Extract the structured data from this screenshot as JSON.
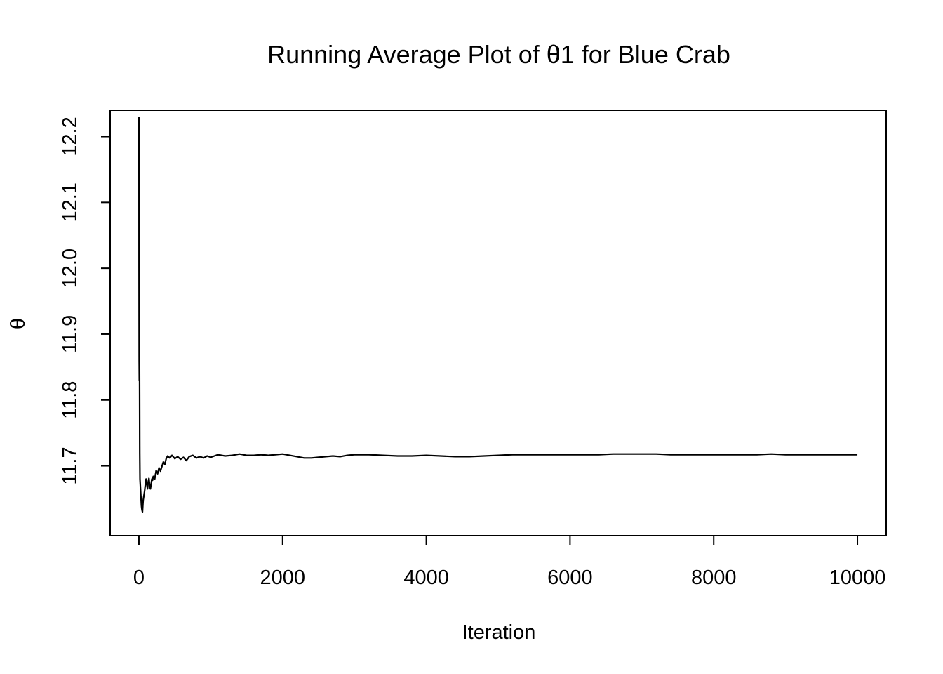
{
  "chart_data": {
    "type": "line",
    "title": "Running Average Plot of θ1 for Blue Crab",
    "xlabel": "Iteration",
    "ylabel": "θ",
    "xlim": [
      -400,
      10400
    ],
    "ylim": [
      11.594,
      12.24
    ],
    "x_ticks": [
      0,
      2000,
      4000,
      6000,
      8000,
      10000
    ],
    "x_tick_labels": [
      "0",
      "2000",
      "4000",
      "6000",
      "8000",
      "10000"
    ],
    "y_ticks": [
      11.7,
      11.8,
      11.9,
      12.0,
      12.1,
      12.2
    ],
    "y_tick_labels": [
      "11.7",
      "11.8",
      "11.9",
      "12.0",
      "12.1",
      "12.2"
    ],
    "grid": false,
    "legend": "none",
    "line_color": "#000000",
    "series": [
      {
        "x": [
          1,
          2,
          3,
          4,
          6,
          8,
          10,
          12,
          15,
          20,
          25,
          30,
          35,
          40,
          45,
          50,
          55,
          60,
          70,
          80,
          90,
          100,
          110,
          120,
          130,
          140,
          150,
          160,
          170,
          180,
          190,
          200,
          220,
          240,
          260,
          280,
          300,
          320,
          340,
          360,
          380,
          400,
          430,
          460,
          500,
          540,
          580,
          620,
          660,
          700,
          750,
          800,
          850,
          900,
          950,
          1000,
          1050,
          1100,
          1150,
          1200,
          1300,
          1400,
          1500,
          1600,
          1700,
          1800,
          1900,
          2000,
          2100,
          2200,
          2300,
          2400,
          2500,
          2600,
          2700,
          2800,
          2900,
          3000,
          3200,
          3400,
          3600,
          3800,
          4000,
          4200,
          4400,
          4600,
          4800,
          5000,
          5200,
          5400,
          5600,
          5800,
          6000,
          6200,
          6400,
          6600,
          6800,
          7000,
          7200,
          7400,
          7600,
          7800,
          8000,
          8200,
          8400,
          8600,
          8800,
          9000,
          9200,
          9400,
          9600,
          9800,
          10000
        ],
        "y": [
          12.23,
          12.0,
          11.92,
          11.86,
          11.83,
          11.9,
          11.81,
          11.72,
          11.68,
          11.67,
          11.66,
          11.65,
          11.64,
          11.635,
          11.632,
          11.63,
          11.64,
          11.648,
          11.655,
          11.662,
          11.672,
          11.68,
          11.672,
          11.665,
          11.676,
          11.681,
          11.67,
          11.665,
          11.672,
          11.68,
          11.678,
          11.684,
          11.68,
          11.693,
          11.688,
          11.697,
          11.692,
          11.699,
          11.706,
          11.702,
          11.711,
          11.715,
          11.712,
          11.716,
          11.711,
          11.714,
          11.71,
          11.713,
          11.708,
          11.714,
          11.716,
          11.712,
          11.714,
          11.712,
          11.715,
          11.713,
          11.715,
          11.717,
          11.716,
          11.715,
          11.716,
          11.718,
          11.716,
          11.716,
          11.717,
          11.716,
          11.717,
          11.718,
          11.716,
          11.714,
          11.712,
          11.712,
          11.713,
          11.714,
          11.715,
          11.714,
          11.716,
          11.717,
          11.717,
          11.716,
          11.715,
          11.715,
          11.716,
          11.715,
          11.714,
          11.714,
          11.715,
          11.716,
          11.717,
          11.717,
          11.717,
          11.717,
          11.717,
          11.717,
          11.717,
          11.718,
          11.718,
          11.718,
          11.718,
          11.717,
          11.717,
          11.717,
          11.717,
          11.717,
          11.717,
          11.717,
          11.718,
          11.717,
          11.717,
          11.717,
          11.717,
          11.717,
          11.717
        ]
      }
    ]
  }
}
